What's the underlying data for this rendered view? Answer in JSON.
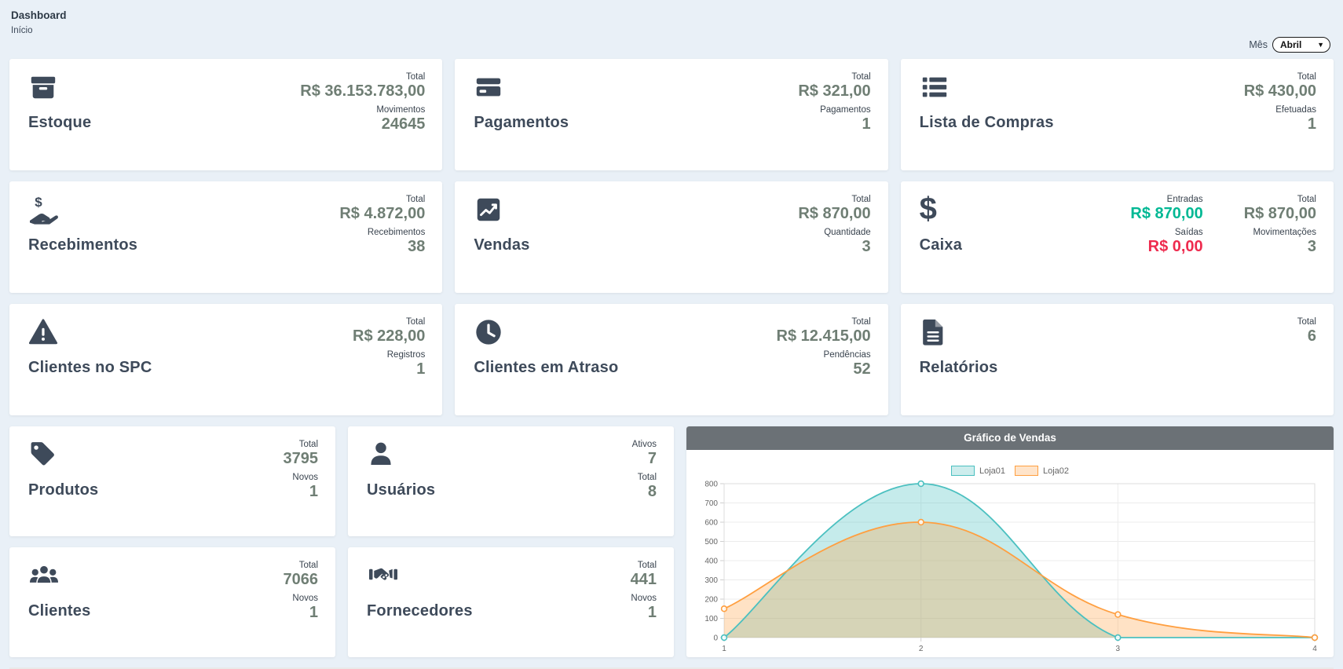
{
  "page": {
    "title": "Dashboard",
    "subtitle": "Início"
  },
  "month_filter": {
    "label": "Mês",
    "value": "Abril"
  },
  "colors": {
    "accent_green": "#00b894",
    "accent_red": "#ee2b4e",
    "value_gray": "#6f7e74",
    "icon_dark": "#3e4a5a",
    "chart_header_gray": "#6b7176",
    "chart_teal": "#4bc0c0",
    "chart_orange": "#ff9f40"
  },
  "cards": [
    {
      "title": "Estoque",
      "icon": "archive-icon",
      "stats": [
        {
          "label": "Total",
          "value": "R$ 36.153.783,00"
        },
        {
          "label": "Movimentos",
          "value": "24645"
        }
      ]
    },
    {
      "title": "Pagamentos",
      "icon": "credit-card-icon",
      "stats": [
        {
          "label": "Total",
          "value": "R$ 321,00"
        },
        {
          "label": "Pagamentos",
          "value": "1"
        }
      ]
    },
    {
      "title": "Lista de Compras",
      "icon": "list-icon",
      "stats": [
        {
          "label": "Total",
          "value": "R$ 430,00"
        },
        {
          "label": "Efetuadas",
          "value": "1"
        }
      ]
    },
    {
      "title": "Recebimentos",
      "icon": "hand-holding-usd-icon",
      "stats": [
        {
          "label": "Total",
          "value": "R$ 4.872,00"
        },
        {
          "label": "Recebimentos",
          "value": "38"
        }
      ]
    },
    {
      "title": "Vendas",
      "icon": "chart-line-icon",
      "stats": [
        {
          "label": "Total",
          "value": "R$ 870,00"
        },
        {
          "label": "Quantidade",
          "value": "3"
        }
      ]
    },
    {
      "title": "Caixa",
      "icon": "dollar-sign-icon",
      "stats": [
        {
          "label": "Entradas",
          "value": "R$ 870,00"
        },
        {
          "label": "Saídas",
          "value": "R$ 0,00"
        },
        {
          "label": "Total",
          "value": "R$ 870,00"
        },
        {
          "label": "Movimentações",
          "value": "3"
        }
      ]
    },
    {
      "title": "Clientes no SPC",
      "icon": "warning-triangle-icon",
      "stats": [
        {
          "label": "Total",
          "value": "R$ 228,00"
        },
        {
          "label": "Registros",
          "value": "1"
        }
      ]
    },
    {
      "title": "Clientes em Atraso",
      "icon": "clock-icon",
      "stats": [
        {
          "label": "Total",
          "value": "R$ 12.415,00"
        },
        {
          "label": "Pendências",
          "value": "52"
        }
      ]
    },
    {
      "title": "Relatórios",
      "icon": "file-alt-icon",
      "stats": [
        {
          "label": "Total",
          "value": "6"
        }
      ]
    },
    {
      "title": "Produtos",
      "icon": "tag-icon",
      "stats": [
        {
          "label": "Total",
          "value": "3795"
        },
        {
          "label": "Novos",
          "value": "1"
        }
      ]
    },
    {
      "title": "Usuários",
      "icon": "user-icon",
      "stats": [
        {
          "label": "Ativos",
          "value": "7"
        },
        {
          "label": "Total",
          "value": "8"
        }
      ]
    },
    {
      "title": "Clientes",
      "icon": "users-icon",
      "stats": [
        {
          "label": "Total",
          "value": "7066"
        },
        {
          "label": "Novos",
          "value": "1"
        }
      ]
    },
    {
      "title": "Fornecedores",
      "icon": "handshake-icon",
      "stats": [
        {
          "label": "Total",
          "value": "441"
        },
        {
          "label": "Novos",
          "value": "1"
        }
      ]
    }
  ],
  "chart_data": {
    "type": "area",
    "title": "Gráfico de Vendas",
    "x": [
      1,
      2,
      3,
      4
    ],
    "xlabel": "",
    "ylabel": "",
    "ylim": [
      0,
      800
    ],
    "ytick": 100,
    "grid": true,
    "legend_position": "top",
    "series": [
      {
        "name": "Loja01",
        "color": "#4bc0c0",
        "fill": "rgba(75,192,192,0.32)",
        "values": [
          0,
          800,
          0,
          0
        ]
      },
      {
        "name": "Loja02",
        "color": "#ff9f40",
        "fill": "rgba(255,159,64,0.30)",
        "values": [
          150,
          600,
          120,
          0
        ]
      }
    ]
  }
}
